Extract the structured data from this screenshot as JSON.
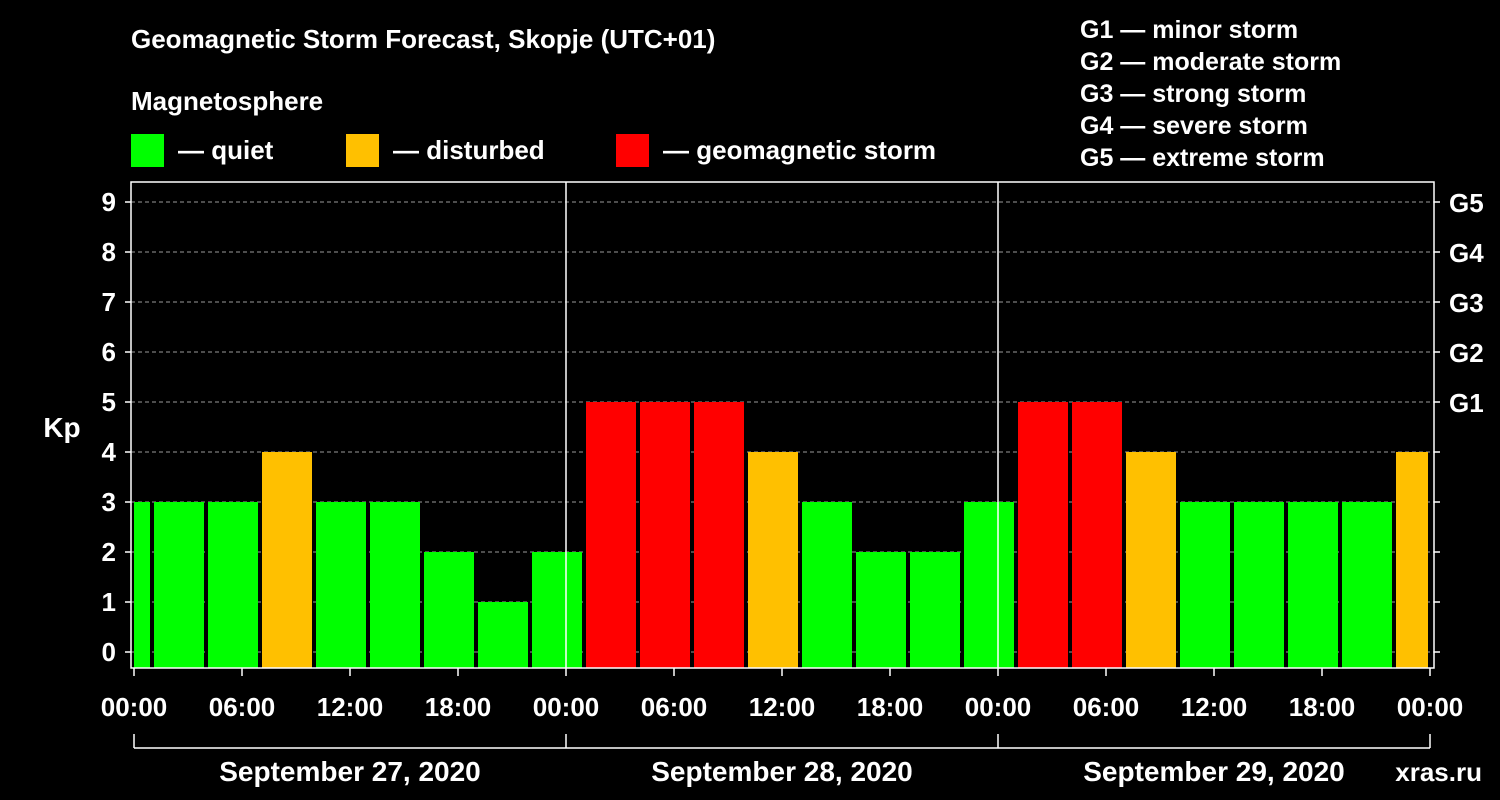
{
  "header": {
    "title": "Geomagnetic Storm Forecast, Skopje (UTC+01)",
    "subtitle": "Magnetosphere"
  },
  "legend": [
    {
      "label": "— quiet",
      "color": "#00ff00"
    },
    {
      "label": "— disturbed",
      "color": "#ffc000"
    },
    {
      "label": "— geomagnetic storm",
      "color": "#ff0000"
    }
  ],
  "storm_scale": [
    "G1 — minor storm",
    "G2 — moderate storm",
    "G3 — strong storm",
    "G4 — severe storm",
    "G5 — extreme storm"
  ],
  "watermark": "xras.ru",
  "chart_data": {
    "type": "bar",
    "title": "Geomagnetic Storm Forecast, Skopje (UTC+01)",
    "ylabel": "Kp",
    "ylim": [
      0,
      9
    ],
    "yticks": [
      "0",
      "1",
      "2",
      "3",
      "4",
      "5",
      "6",
      "7",
      "8",
      "9"
    ],
    "right_axis": {
      "labels": [
        {
          "kp": 5,
          "label": "G1"
        },
        {
          "kp": 6,
          "label": "G2"
        },
        {
          "kp": 7,
          "label": "G3"
        },
        {
          "kp": 8,
          "label": "G4"
        },
        {
          "kp": 9,
          "label": "G5"
        }
      ]
    },
    "x_range_hours": [
      0,
      72
    ],
    "xtick_labels": [
      "00:00",
      "06:00",
      "12:00",
      "18:00",
      "00:00",
      "06:00",
      "12:00",
      "18:00",
      "00:00",
      "06:00",
      "12:00",
      "18:00",
      "00:00"
    ],
    "days": [
      "September 27, 2020",
      "September 28, 2020",
      "September 29, 2020"
    ],
    "colors": {
      "quiet": "#00ff00",
      "disturbed": "#ffc000",
      "storm": "#ff0000"
    },
    "bars": [
      {
        "start": 0,
        "end": 1,
        "kp": 3
      },
      {
        "start": 1,
        "end": 4,
        "kp": 3
      },
      {
        "start": 4,
        "end": 7,
        "kp": 3
      },
      {
        "start": 7,
        "end": 10,
        "kp": 4
      },
      {
        "start": 10,
        "end": 13,
        "kp": 3
      },
      {
        "start": 13,
        "end": 16,
        "kp": 3
      },
      {
        "start": 16,
        "end": 19,
        "kp": 2
      },
      {
        "start": 19,
        "end": 22,
        "kp": 1
      },
      {
        "start": 22,
        "end": 25,
        "kp": 2
      },
      {
        "start": 25,
        "end": 28,
        "kp": 5
      },
      {
        "start": 28,
        "end": 31,
        "kp": 5
      },
      {
        "start": 31,
        "end": 34,
        "kp": 5
      },
      {
        "start": 34,
        "end": 37,
        "kp": 4
      },
      {
        "start": 37,
        "end": 40,
        "kp": 3
      },
      {
        "start": 40,
        "end": 43,
        "kp": 2
      },
      {
        "start": 43,
        "end": 46,
        "kp": 2
      },
      {
        "start": 46,
        "end": 49,
        "kp": 3
      },
      {
        "start": 49,
        "end": 52,
        "kp": 5
      },
      {
        "start": 52,
        "end": 55,
        "kp": 5
      },
      {
        "start": 55,
        "end": 58,
        "kp": 4
      },
      {
        "start": 58,
        "end": 61,
        "kp": 3
      },
      {
        "start": 61,
        "end": 64,
        "kp": 3
      },
      {
        "start": 64,
        "end": 67,
        "kp": 3
      },
      {
        "start": 67,
        "end": 70,
        "kp": 3
      },
      {
        "start": 70,
        "end": 72,
        "kp": 4
      }
    ]
  }
}
